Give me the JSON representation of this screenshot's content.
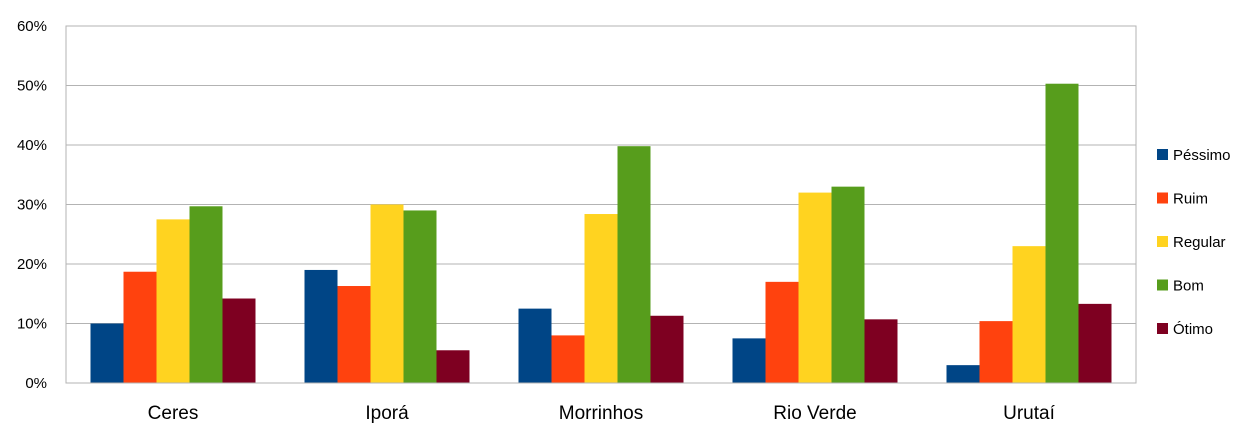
{
  "chart_data": {
    "type": "bar",
    "title": "",
    "xlabel": "",
    "ylabel": "",
    "ylim": [
      0,
      0.6
    ],
    "yticks": [
      "0%",
      "10%",
      "20%",
      "30%",
      "40%",
      "50%",
      "60%"
    ],
    "grid": true,
    "legend_position": "right",
    "categories": [
      "Ceres",
      "Iporá",
      "Morrinhos",
      "Rio Verde",
      "Urutaí"
    ],
    "series": [
      {
        "name": "Péssimo",
        "color": "#004586",
        "values": [
          0.1,
          0.19,
          0.125,
          0.075,
          0.03
        ]
      },
      {
        "name": "Ruim",
        "color": "#ff420e",
        "values": [
          0.187,
          0.163,
          0.08,
          0.17,
          0.104
        ]
      },
      {
        "name": "Regular",
        "color": "#ffd320",
        "values": [
          0.275,
          0.3,
          0.284,
          0.32,
          0.23
        ]
      },
      {
        "name": "Bom",
        "color": "#579d1c",
        "values": [
          0.297,
          0.29,
          0.398,
          0.33,
          0.503
        ]
      },
      {
        "name": "Ótimo",
        "color": "#7e0021",
        "values": [
          0.142,
          0.055,
          0.113,
          0.107,
          0.133
        ]
      }
    ]
  }
}
